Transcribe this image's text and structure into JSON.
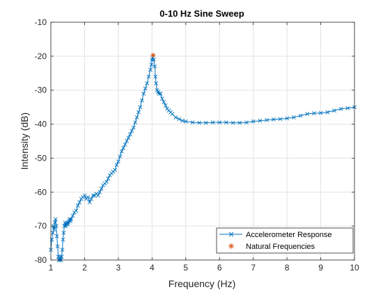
{
  "chart_data": {
    "type": "line",
    "title": "0-10 Hz Sine Sweep",
    "xlabel": "Frequency (Hz)",
    "ylabel": "Intensity (dB)",
    "xlim": [
      1,
      10
    ],
    "ylim": [
      -80,
      -10
    ],
    "xticks": [
      1,
      2,
      3,
      4,
      5,
      6,
      7,
      8,
      9,
      10
    ],
    "yticks": [
      -80,
      -70,
      -60,
      -50,
      -40,
      -30,
      -20,
      -10
    ],
    "grid": true,
    "legend_position": "bottom-right",
    "colors": {
      "response": "#0072BD",
      "natural": "#D95319"
    },
    "series": [
      {
        "name": "Accelerometer Response",
        "marker": "x",
        "x": [
          1.0,
          1.03,
          1.06,
          1.08,
          1.1,
          1.12,
          1.14,
          1.16,
          1.18,
          1.2,
          1.22,
          1.24,
          1.26,
          1.28,
          1.3,
          1.32,
          1.34,
          1.36,
          1.38,
          1.4,
          1.42,
          1.44,
          1.46,
          1.48,
          1.5,
          1.52,
          1.54,
          1.56,
          1.58,
          1.6,
          1.65,
          1.7,
          1.75,
          1.8,
          1.85,
          1.9,
          1.95,
          2.0,
          2.05,
          2.1,
          2.15,
          2.2,
          2.25,
          2.3,
          2.35,
          2.4,
          2.45,
          2.5,
          2.55,
          2.6,
          2.65,
          2.7,
          2.75,
          2.8,
          2.85,
          2.9,
          2.95,
          3.0,
          3.05,
          3.1,
          3.15,
          3.2,
          3.25,
          3.3,
          3.35,
          3.4,
          3.45,
          3.5,
          3.55,
          3.6,
          3.65,
          3.7,
          3.75,
          3.8,
          3.85,
          3.9,
          3.95,
          3.98,
          4.0,
          4.02,
          4.05,
          4.08,
          4.1,
          4.12,
          4.15,
          4.18,
          4.2,
          4.25,
          4.3,
          4.35,
          4.4,
          4.45,
          4.5,
          4.55,
          4.6,
          4.7,
          4.8,
          4.9,
          5.0,
          5.2,
          5.4,
          5.6,
          5.8,
          6.0,
          6.2,
          6.4,
          6.6,
          6.8,
          7.0,
          7.2,
          7.4,
          7.6,
          7.8,
          8.0,
          8.2,
          8.4,
          8.6,
          8.8,
          9.0,
          9.2,
          9.4,
          9.6,
          9.8,
          10.0
        ],
        "y": [
          -77,
          -74,
          -72,
          -70,
          -71,
          -69,
          -68,
          -70,
          -73,
          -76,
          -79,
          -80,
          -80,
          -79,
          -80,
          -79,
          -77,
          -74,
          -72,
          -70,
          -69,
          -70,
          -69.5,
          -69,
          -69.5,
          -69,
          -68.5,
          -68,
          -68.5,
          -68,
          -67,
          -66,
          -65.5,
          -64,
          -63,
          -62,
          -61.5,
          -61,
          -62,
          -61.5,
          -63,
          -62,
          -61,
          -61,
          -60.5,
          -61,
          -60,
          -59,
          -58,
          -57.5,
          -57,
          -56,
          -55,
          -54.5,
          -54,
          -53.5,
          -52,
          -51,
          -49.5,
          -48,
          -47,
          -46,
          -45,
          -44,
          -43,
          -42,
          -41,
          -39.5,
          -38,
          -36.5,
          -35,
          -33,
          -31,
          -29.5,
          -28,
          -26,
          -24,
          -22.5,
          -21,
          -20.5,
          -21,
          -23,
          -26,
          -28,
          -30,
          -30.5,
          -31,
          -31,
          -32.5,
          -33.5,
          -34.5,
          -35.5,
          -36,
          -36.5,
          -37,
          -38,
          -38.5,
          -39,
          -39.2,
          -39.5,
          -39.6,
          -39.6,
          -39.5,
          -39.5,
          -39.5,
          -39.6,
          -39.6,
          -39.5,
          -39.2,
          -39,
          -38.8,
          -38.6,
          -38.5,
          -38.3,
          -38,
          -37.5,
          -37,
          -36.8,
          -36.7,
          -36.5,
          -36,
          -35.5,
          -35.3,
          -35
        ]
      },
      {
        "name": "Natural Frequencies",
        "marker": "asterisk",
        "x": [
          4.03
        ],
        "y": [
          -19.7
        ]
      }
    ]
  }
}
